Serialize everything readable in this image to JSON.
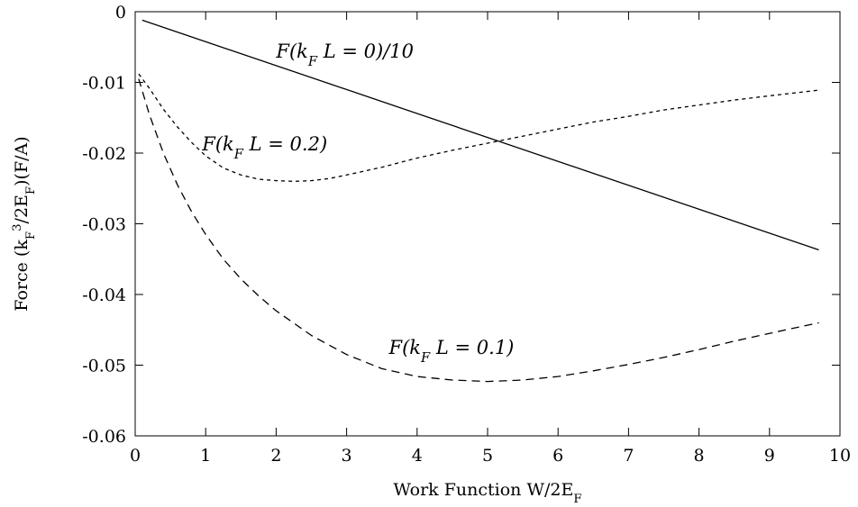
{
  "chart_data": {
    "type": "line",
    "xlabel": "Work Function W/2E_F",
    "ylabel": "Force (k_F^3/2E_F)(F/A)",
    "xlim": [
      0,
      10
    ],
    "ylim": [
      -0.06,
      0
    ],
    "x_ticks": [
      0,
      1,
      2,
      3,
      4,
      5,
      6,
      7,
      8,
      9,
      10
    ],
    "y_ticks": [
      0,
      -0.01,
      -0.02,
      -0.03,
      -0.04,
      -0.05,
      -0.06
    ],
    "x_tick_labels": [
      "0",
      "1",
      "2",
      "3",
      "4",
      "5",
      "6",
      "7",
      "8",
      "9",
      "10"
    ],
    "y_tick_labels": [
      "0",
      "-0.01",
      "-0.02",
      "-0.03",
      "-0.04",
      "-0.05",
      "-0.06"
    ],
    "grid": false,
    "legend": "none",
    "series": [
      {
        "style": "solid",
        "x": [
          0.1,
          9.7
        ],
        "y": [
          -0.0012,
          -0.0337
        ]
      },
      {
        "style": "dashed",
        "x": [
          0.05,
          0.2,
          0.4,
          0.6,
          0.8,
          1.0,
          1.25,
          1.5,
          1.75,
          2.0,
          2.5,
          3.0,
          3.5,
          4.0,
          4.5,
          5.0,
          5.5,
          6.0,
          6.5,
          7.0,
          7.5,
          8.0,
          8.5,
          9.0,
          9.7
        ],
        "y": [
          -0.0095,
          -0.0145,
          -0.02,
          -0.0245,
          -0.0283,
          -0.0315,
          -0.035,
          -0.0378,
          -0.0402,
          -0.0423,
          -0.0458,
          -0.0485,
          -0.0505,
          -0.0516,
          -0.0521,
          -0.0523,
          -0.0521,
          -0.0516,
          -0.0508,
          -0.0499,
          -0.0489,
          -0.0478,
          -0.0466,
          -0.0455,
          -0.044
        ]
      },
      {
        "style": "dotted",
        "x": [
          0.05,
          0.2,
          0.4,
          0.6,
          0.8,
          1.0,
          1.25,
          1.5,
          1.75,
          2.0,
          2.25,
          2.5,
          2.75,
          3.0,
          3.5,
          4.0,
          4.5,
          5.0,
          5.5,
          6.0,
          6.5,
          7.0,
          7.5,
          8.0,
          8.5,
          9.0,
          9.7
        ],
        "y": [
          -0.0088,
          -0.0108,
          -0.0138,
          -0.0163,
          -0.0185,
          -0.0204,
          -0.0221,
          -0.0231,
          -0.0237,
          -0.0239,
          -0.024,
          -0.0239,
          -0.0236,
          -0.0231,
          -0.022,
          -0.0207,
          -0.0196,
          -0.0186,
          -0.0176,
          -0.0166,
          -0.0156,
          -0.0148,
          -0.0139,
          -0.0132,
          -0.0125,
          -0.0119,
          -0.0111
        ]
      }
    ],
    "annotations": [
      {
        "text": "F(k_F L = 0)/10",
        "x": 2.0,
        "y": -0.0065,
        "anchor": "start"
      },
      {
        "text": "F(k_F L = 0.2)",
        "x": 0.95,
        "y": -0.0196,
        "anchor": "start"
      },
      {
        "text": "F(k_F L = 0.1)",
        "x": 3.6,
        "y": -0.0484,
        "anchor": "start"
      }
    ]
  }
}
